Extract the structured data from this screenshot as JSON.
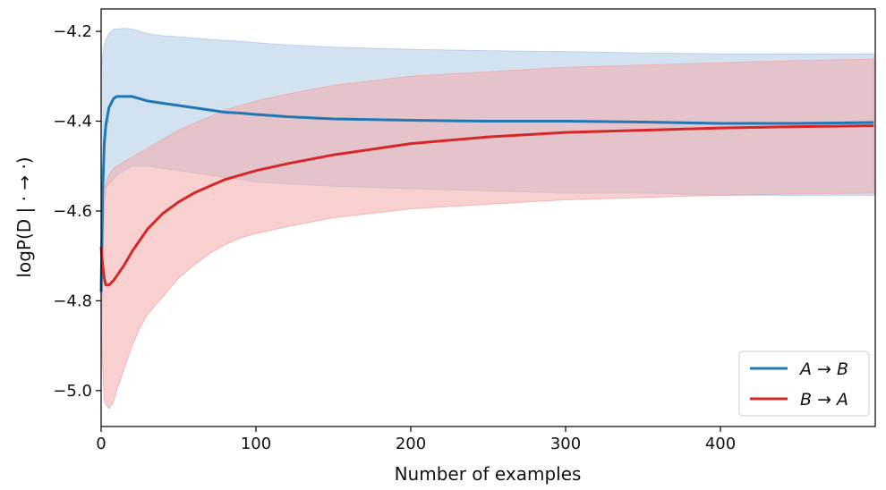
{
  "chart_data": {
    "type": "line",
    "xlabel": "Number of examples",
    "ylabel": "logP(D | · → ·)",
    "xlim": [
      0,
      500
    ],
    "ylim": [
      -5.08,
      -4.15
    ],
    "x_ticks": [
      0,
      100,
      200,
      300,
      400
    ],
    "x_tick_labels": [
      "0",
      "100",
      "200",
      "300",
      "400"
    ],
    "y_ticks": [
      -4.2,
      -4.4,
      -4.6,
      -4.8,
      -5.0
    ],
    "y_tick_labels": [
      "−4.2",
      "−4.4",
      "−4.6",
      "−4.8",
      "−5.0"
    ],
    "grid": false,
    "legend_position": "bottom-right",
    "series": [
      {
        "name": "A → B",
        "color": "#1f77b4",
        "band_color": "#aecbe6",
        "x": [
          0,
          1,
          2,
          3,
          5,
          8,
          10,
          15,
          20,
          25,
          30,
          40,
          50,
          60,
          70,
          80,
          90,
          100,
          120,
          150,
          200,
          250,
          300,
          350,
          400,
          450,
          499
        ],
        "mean": [
          -4.78,
          -4.56,
          -4.45,
          -4.41,
          -4.37,
          -4.35,
          -4.345,
          -4.345,
          -4.345,
          -4.35,
          -4.355,
          -4.36,
          -4.365,
          -4.37,
          -4.375,
          -4.38,
          -4.382,
          -4.385,
          -4.39,
          -4.395,
          -4.398,
          -4.4,
          -4.4,
          -4.402,
          -4.405,
          -4.405,
          -4.403
        ],
        "upper": [
          -4.3,
          -4.25,
          -4.23,
          -4.22,
          -4.205,
          -4.195,
          -4.195,
          -4.193,
          -4.195,
          -4.2,
          -4.205,
          -4.21,
          -4.212,
          -4.215,
          -4.218,
          -4.22,
          -4.222,
          -4.225,
          -4.23,
          -4.235,
          -4.24,
          -4.243,
          -4.245,
          -4.248,
          -4.25,
          -4.25,
          -4.25
        ],
        "lower": [
          -4.92,
          -4.75,
          -4.6,
          -4.55,
          -4.54,
          -4.53,
          -4.52,
          -4.51,
          -4.5,
          -4.5,
          -4.5,
          -4.505,
          -4.51,
          -4.515,
          -4.52,
          -4.525,
          -4.53,
          -4.535,
          -4.54,
          -4.545,
          -4.55,
          -4.555,
          -4.56,
          -4.56,
          -4.565,
          -4.565,
          -4.565
        ]
      },
      {
        "name": "B → A",
        "color": "#d62728",
        "band_color": "#f2a9a9",
        "x": [
          0,
          1,
          2,
          3,
          5,
          8,
          10,
          15,
          20,
          25,
          30,
          40,
          50,
          60,
          70,
          80,
          90,
          100,
          120,
          150,
          200,
          250,
          300,
          350,
          400,
          450,
          499
        ],
        "mean": [
          -4.68,
          -4.72,
          -4.75,
          -4.765,
          -4.765,
          -4.755,
          -4.745,
          -4.72,
          -4.69,
          -4.665,
          -4.64,
          -4.605,
          -4.58,
          -4.56,
          -4.545,
          -4.53,
          -4.52,
          -4.51,
          -4.495,
          -4.475,
          -4.45,
          -4.435,
          -4.425,
          -4.42,
          -4.415,
          -4.412,
          -4.41
        ],
        "upper": [
          -4.5,
          -4.52,
          -4.55,
          -4.54,
          -4.52,
          -4.505,
          -4.5,
          -4.49,
          -4.48,
          -4.47,
          -4.46,
          -4.44,
          -4.42,
          -4.405,
          -4.39,
          -4.375,
          -4.365,
          -4.355,
          -4.34,
          -4.32,
          -4.3,
          -4.29,
          -4.28,
          -4.275,
          -4.27,
          -4.265,
          -4.262
        ],
        "lower": [
          -4.85,
          -4.95,
          -5.02,
          -5.03,
          -5.04,
          -5.025,
          -5.0,
          -4.95,
          -4.9,
          -4.86,
          -4.83,
          -4.79,
          -4.75,
          -4.72,
          -4.695,
          -4.675,
          -4.66,
          -4.65,
          -4.635,
          -4.615,
          -4.595,
          -4.585,
          -4.575,
          -4.57,
          -4.565,
          -4.562,
          -4.56
        ]
      }
    ]
  }
}
